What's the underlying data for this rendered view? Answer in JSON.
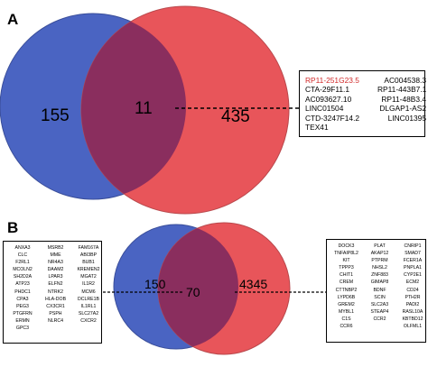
{
  "colors": {
    "left_circle": "#4a64c2",
    "right_circle": "#e8555a",
    "overlap": "#8a2e5e",
    "highlight_gene": "#d12a2a"
  },
  "panelA": {
    "label": "A",
    "left_count": "155",
    "overlap_count": "11",
    "right_count": "435",
    "genes": [
      "RP11-251G23.5",
      "AC004538.3",
      "CTA-29F11.1",
      "RP11-443B7.1",
      "AC093627.10",
      "RP11-48B3.4",
      "LINC01504",
      "DLGAP1-AS2",
      "CTD-3247F14.2",
      "LINC01395",
      "TEX41"
    ],
    "highlighted_gene": "RP11-251G23.5"
  },
  "panelB": {
    "label": "B",
    "left_count": "150",
    "overlap_count": "70",
    "right_count": "4345",
    "left_genes": [
      "ANXA3",
      "MSRB2",
      "FAM167A",
      "CLC",
      "MME",
      "ABI3BP",
      "F2RL1",
      "NR4A3",
      "BUB1",
      "MCOLN2",
      "DAAM2",
      "KREMEN2",
      "SH2D2A",
      "LPAR3",
      "MGAT2",
      "ATP23",
      "ELFN2",
      "IL1R2",
      "PHDC1",
      "NTRK2",
      "MCM6",
      "CPA3",
      "HLA-DOB",
      "DCLRE1B",
      "PEG3",
      "CX3CR1",
      "IL1RL1",
      "PTGFRN",
      "PSPH",
      "SLC27A2",
      "ERMN",
      "NLRC4",
      "CXCR2",
      "GPC3"
    ],
    "right_genes": [
      "DOCK3",
      "PLAT",
      "CNRIP1",
      "TNFAIP8L2",
      "AKAP12",
      "SMAD7",
      "KIT",
      "PTPRM",
      "FCER1A",
      "TPPP3",
      "NHSL2",
      "PNPLA1",
      "CHIT1",
      "ZNF883",
      "CYP2E1",
      "CREM",
      "GIMAP8",
      "ECM2",
      "CTTNBP2",
      "BDNF",
      "CD24",
      "LYPD6B",
      "SCIN",
      "PTH2R",
      "GREM2",
      "SLC2A3",
      "PADI2",
      "MYBL1",
      "STEAP4",
      "RASL10A",
      "C1S",
      "CCR2",
      "KBTBD12",
      "CCR6",
      "",
      "OLFML1"
    ]
  }
}
